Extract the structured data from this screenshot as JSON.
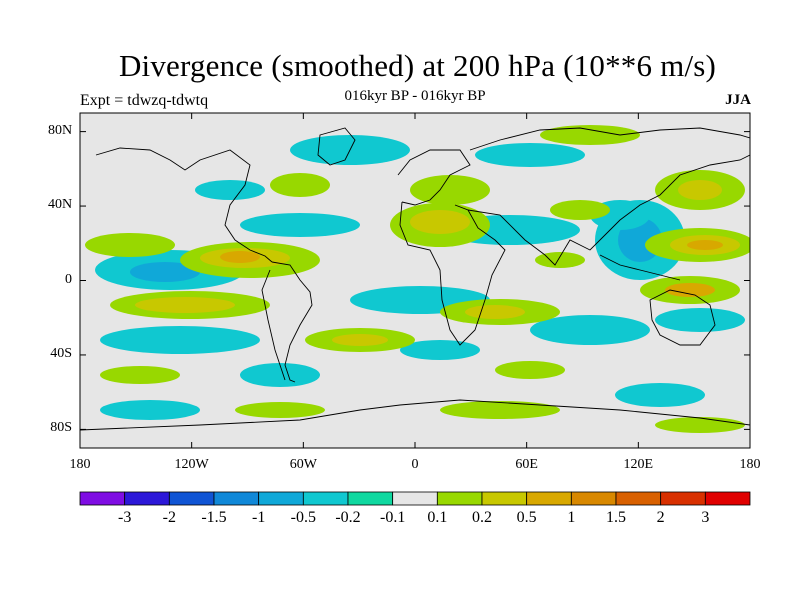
{
  "title": "Divergence (smoothed) at 200 hPa (10**6 m/s)",
  "subtitle": "016kyr BP - 016kyr BP",
  "experiment": "Expt = tdwzq-tdwtq",
  "season": "JJA",
  "map": {
    "projection": "cylindrical equidistant",
    "lon_range": [
      -180,
      180
    ],
    "lat_range": [
      -90,
      90
    ],
    "x_ticks": [
      "180",
      "120W",
      "60W",
      "0",
      "60E",
      "120E",
      "180"
    ],
    "y_ticks": [
      "80N",
      "40N",
      "0",
      "40S",
      "80S"
    ],
    "background_color": "#e6e6e6"
  },
  "colorbar": {
    "labels": [
      "-3",
      "-2",
      "-1.5",
      "-1",
      "-0.5",
      "-0.2",
      "-0.1",
      "0.1",
      "0.2",
      "0.5",
      "1",
      "1.5",
      "2",
      "3"
    ],
    "colors": [
      "#7f0de3",
      "#2c18d8",
      "#1054d4",
      "#1088d8",
      "#10a8d8",
      "#10c8d0",
      "#10d8a0",
      "#e6e6e6",
      "#98d800",
      "#c8c800",
      "#d8a800",
      "#d88800",
      "#d86000",
      "#d83000",
      "#e00000"
    ]
  },
  "chart_data": {
    "type": "heatmap",
    "variable": "Divergence (smoothed) at 200 hPa",
    "units": "10**6 m/s",
    "season": "JJA",
    "contour_levels": [
      -3,
      -2,
      -1.5,
      -1,
      -0.5,
      -0.2,
      -0.1,
      0.1,
      0.2,
      0.5,
      1,
      1.5,
      2,
      3
    ]
  }
}
